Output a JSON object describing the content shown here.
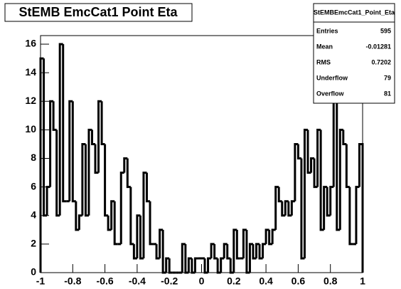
{
  "chart_data": {
    "type": "histogram",
    "title": "StEMB EmcCat1 Point Eta",
    "bins": [
      -1,
      -0.98,
      -0.96,
      -0.94,
      -0.92,
      -0.9,
      -0.88,
      -0.86,
      -0.84,
      -0.82,
      -0.8,
      -0.78,
      -0.76,
      -0.74,
      -0.72,
      -0.7,
      -0.68,
      -0.66,
      -0.64,
      -0.62,
      -0.6,
      -0.58,
      -0.56,
      -0.54,
      -0.52,
      -0.5,
      -0.48,
      -0.46,
      -0.44,
      -0.42,
      -0.4,
      -0.38,
      -0.36,
      -0.34,
      -0.32,
      -0.3,
      -0.28,
      -0.26,
      -0.24,
      -0.22,
      -0.2,
      -0.18,
      -0.16,
      -0.14,
      -0.12,
      -0.1,
      -0.08,
      -0.06,
      -0.04,
      -0.02,
      0,
      0.02,
      0.04,
      0.06,
      0.08,
      0.1,
      0.12,
      0.14,
      0.16,
      0.18,
      0.2,
      0.22,
      0.24,
      0.26,
      0.28,
      0.3,
      0.32,
      0.34,
      0.36,
      0.38,
      0.4,
      0.42,
      0.44,
      0.46,
      0.48,
      0.5,
      0.52,
      0.54,
      0.56,
      0.58,
      0.6,
      0.62,
      0.64,
      0.66,
      0.68,
      0.7,
      0.72,
      0.74,
      0.76,
      0.78,
      0.8,
      0.82,
      0.84,
      0.86,
      0.88,
      0.9,
      0.92,
      0.94,
      0.96,
      0.98,
      1
    ],
    "values": [
      15,
      4,
      6,
      12,
      10,
      4,
      16,
      5,
      5,
      12,
      5,
      3,
      4,
      9,
      4,
      10,
      9,
      7,
      12,
      9,
      4,
      3,
      5,
      2,
      2,
      7,
      8,
      6,
      2,
      1,
      4,
      1,
      7,
      5,
      2,
      2,
      1,
      3,
      0,
      1,
      0,
      0,
      0,
      0,
      2,
      0,
      1,
      0,
      1,
      1,
      1,
      0,
      1,
      2,
      1,
      0,
      1,
      2,
      1,
      0,
      3,
      1,
      1,
      3,
      0,
      2,
      1,
      2,
      1,
      2,
      3,
      2,
      3,
      6,
      5,
      4,
      5,
      4,
      5,
      9,
      8,
      1,
      10,
      7,
      8,
      6,
      10,
      3,
      6,
      4,
      6,
      14,
      3,
      10,
      9,
      6,
      2,
      2,
      6,
      9
    ],
    "color": "#000000",
    "xlim": [
      -1,
      1
    ],
    "xticks": [
      -1,
      -0.8,
      -0.6,
      -0.4,
      -0.2,
      0,
      0.2,
      0.4,
      0.6,
      0.8,
      1
    ],
    "ylim": [
      0,
      16.6
    ],
    "yticks": [
      0,
      2,
      4,
      6,
      8,
      10,
      12,
      14,
      16
    ],
    "stats": {
      "title": "StEMBEmcCat1_Point_Eta",
      "rows": [
        {
          "label": "Entries",
          "value": 595
        },
        {
          "label": "Mean",
          "value": -0.01281
        },
        {
          "label": "RMS",
          "value": 0.7202
        },
        {
          "label": "Underflow",
          "value": 79
        },
        {
          "label": "Overflow",
          "value": 81
        }
      ]
    }
  }
}
